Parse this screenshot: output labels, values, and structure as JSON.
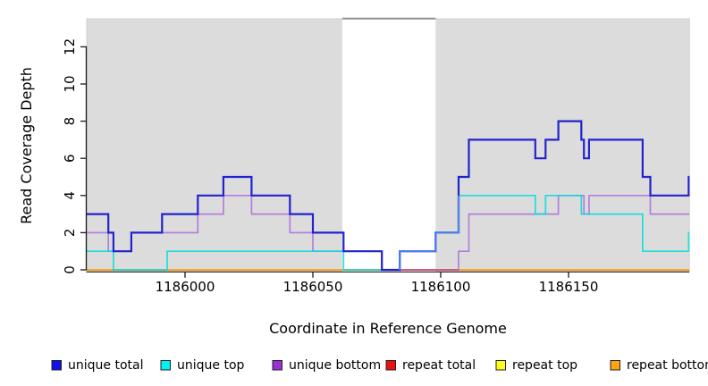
{
  "axes": {
    "y_label": "Read Coverage Depth",
    "x_label": "Coordinate in Reference Genome",
    "y_ticks": [
      0,
      2,
      4,
      6,
      8,
      10,
      12
    ],
    "x_ticks": [
      {
        "label": "1186000",
        "coord": 1186000
      },
      {
        "label": "1186050",
        "coord": 1186050
      },
      {
        "label": "1186100",
        "coord": 1186100
      },
      {
        "label": "1186150",
        "coord": 1186150
      }
    ]
  },
  "chart_data": {
    "type": "line",
    "step_style": "post",
    "xlim": [
      1185961.5,
      1186197.3
    ],
    "ylim": [
      0,
      13.5
    ],
    "background_color": "#DCDCDC",
    "mask_region": {
      "start": 1186061.5,
      "end": 1186098,
      "color": "#FFFFFF",
      "top_border_color": "#8F8F8F"
    },
    "draw_order": [
      "repeat top",
      "repeat bottom",
      "unique bottom",
      "repeat total",
      "unique top",
      "unique total"
    ],
    "series": [
      {
        "name": "unique total",
        "color": "#2222CE",
        "width": 2.2,
        "opacity": 1,
        "values": [
          [
            1185961.5,
            3
          ],
          [
            1185970,
            2
          ],
          [
            1185972,
            1
          ],
          [
            1185979,
            2
          ],
          [
            1185991,
            3
          ],
          [
            1186005,
            4
          ],
          [
            1186015,
            5
          ],
          [
            1186026,
            4
          ],
          [
            1186041,
            3
          ],
          [
            1186050,
            2
          ],
          [
            1186062,
            1
          ],
          [
            1186077,
            0
          ],
          [
            1186084,
            1
          ],
          [
            1186098,
            2
          ],
          [
            1186107,
            5
          ],
          [
            1186111,
            7
          ],
          [
            1186137,
            6
          ],
          [
            1186141,
            7
          ],
          [
            1186146,
            8
          ],
          [
            1186155,
            7
          ],
          [
            1186156,
            6
          ],
          [
            1186158,
            7
          ],
          [
            1186179,
            5
          ],
          [
            1186182,
            4
          ],
          [
            1186197,
            5
          ]
        ]
      },
      {
        "name": "unique top",
        "color": "#00DCDC",
        "width": 1.7,
        "opacity": 0.85,
        "values": [
          [
            1185961.5,
            1
          ],
          [
            1185972,
            0
          ],
          [
            1185993,
            1
          ],
          [
            1186062,
            0
          ],
          [
            1186084,
            1
          ],
          [
            1186098,
            2
          ],
          [
            1186107,
            4
          ],
          [
            1186137,
            3
          ],
          [
            1186141,
            4
          ],
          [
            1186155,
            3
          ],
          [
            1186179,
            1
          ],
          [
            1186197,
            2
          ]
        ]
      },
      {
        "name": "unique bottom",
        "color": "#B27FDC",
        "width": 1.7,
        "opacity": 1,
        "values": [
          [
            1185961.5,
            2
          ],
          [
            1185970,
            1
          ],
          [
            1185979,
            2
          ],
          [
            1186005,
            3
          ],
          [
            1186015,
            4
          ],
          [
            1186026,
            3
          ],
          [
            1186041,
            2
          ],
          [
            1186050,
            1
          ],
          [
            1186077,
            0
          ],
          [
            1186107,
            1
          ],
          [
            1186111,
            3
          ],
          [
            1186146,
            4
          ],
          [
            1186156,
            3
          ],
          [
            1186158,
            4
          ],
          [
            1186182,
            3
          ]
        ]
      },
      {
        "name": "repeat total",
        "color": "#D65078",
        "width": 1.7,
        "opacity": 1,
        "end": 1186107,
        "values": [
          [
            1186084,
            0
          ]
        ]
      },
      {
        "name": "repeat top",
        "color": "#FCFC1C",
        "width": 1.5,
        "opacity": 1,
        "values": [
          [
            1185961.5,
            0
          ]
        ]
      },
      {
        "name": "repeat bottom",
        "color": "#FFA41E",
        "width": 2.0,
        "opacity": 1,
        "values": [
          [
            1185961.5,
            0
          ]
        ]
      }
    ],
    "overlay_segment": {
      "note": "lighter blue where unique total coincides with unique top",
      "color": "#4C80EC",
      "width": 2.2,
      "points": [
        [
          1186084,
          0
        ],
        [
          1186084,
          1
        ],
        [
          1186098,
          1
        ],
        [
          1186098,
          2
        ],
        [
          1186107,
          2
        ],
        [
          1186107,
          4
        ]
      ]
    }
  },
  "legend": {
    "items": [
      {
        "label": "unique total",
        "color": "#1111E8"
      },
      {
        "label": "unique top",
        "color": "#00F2F2"
      },
      {
        "label": "unique bottom",
        "color": "#9B2FD6"
      },
      {
        "label": "repeat total",
        "color": "#EA1111"
      },
      {
        "label": "repeat top",
        "color": "#FCFC1C"
      },
      {
        "label": "repeat bottom",
        "color": "#FFA413"
      }
    ]
  }
}
